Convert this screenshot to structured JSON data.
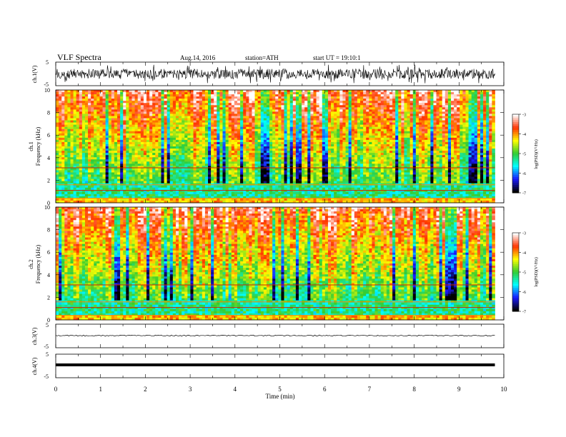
{
  "header": {
    "title": "VLF Spectra",
    "date": "Aug.14, 2016",
    "station": "station=ATH",
    "start": "start UT = 19:10:1"
  },
  "colors": {
    "colormap": [
      "#000000",
      "#1a1aff",
      "#00ffff",
      "#33cc33",
      "#ffff00",
      "#ff3300",
      "#ffffff"
    ]
  },
  "chart_data": [
    {
      "type": "line",
      "panel": "ch1-waveform",
      "ylabel": "ch.1(V)",
      "ylim": [
        -5,
        5
      ],
      "yticks": [
        "5",
        "-5"
      ],
      "xlim": [
        0,
        10
      ],
      "note": "dense noisy waveform, amplitude about +/-1.5 V"
    },
    {
      "type": "heatmap",
      "panel": "ch1-spectrogram",
      "ylabel_top": "ch.1",
      "ylabel": "Frequency (kHz)",
      "ylim": [
        0,
        10
      ],
      "yticks": [
        "0",
        "2",
        "4",
        "6",
        "8",
        "10"
      ],
      "xlim": [
        0,
        9.8
      ],
      "colorbar": {
        "label": "log(PSD)(V²/Hz)",
        "range": [
          -7,
          -3
        ],
        "ticks": [
          "-3",
          "-4",
          "-5",
          "-6",
          "-7"
        ]
      }
    },
    {
      "type": "heatmap",
      "panel": "ch2-spectrogram",
      "ylabel_top": "ch.2",
      "ylabel": "Frequency (kHz)",
      "ylim": [
        0,
        10
      ],
      "yticks": [
        "0",
        "2",
        "4",
        "6",
        "8",
        "10"
      ],
      "xlim": [
        0,
        9.8
      ],
      "colorbar": {
        "label": "log(PSD)(V²/Hz)",
        "range": [
          -7,
          -3
        ],
        "ticks": [
          "-3",
          "-4",
          "-5",
          "-6",
          "-7"
        ]
      }
    },
    {
      "type": "line",
      "panel": "ch3-waveform",
      "ylabel": "ch.3(V)",
      "ylim": [
        -5,
        5
      ],
      "yticks": [
        "5",
        "-5"
      ],
      "note": "near-constant trace around 0 V"
    },
    {
      "type": "line",
      "panel": "ch4-waveform",
      "ylabel": "ch.4(V)",
      "ylim": [
        -5,
        5
      ],
      "yticks": [
        "5",
        "-5"
      ],
      "note": "thick constant trace at about -1 V"
    }
  ],
  "xaxis": {
    "label": "Time (min)",
    "ticks": [
      "0",
      "1",
      "2",
      "3",
      "4",
      "5",
      "6",
      "7",
      "8",
      "9",
      "10"
    ]
  }
}
